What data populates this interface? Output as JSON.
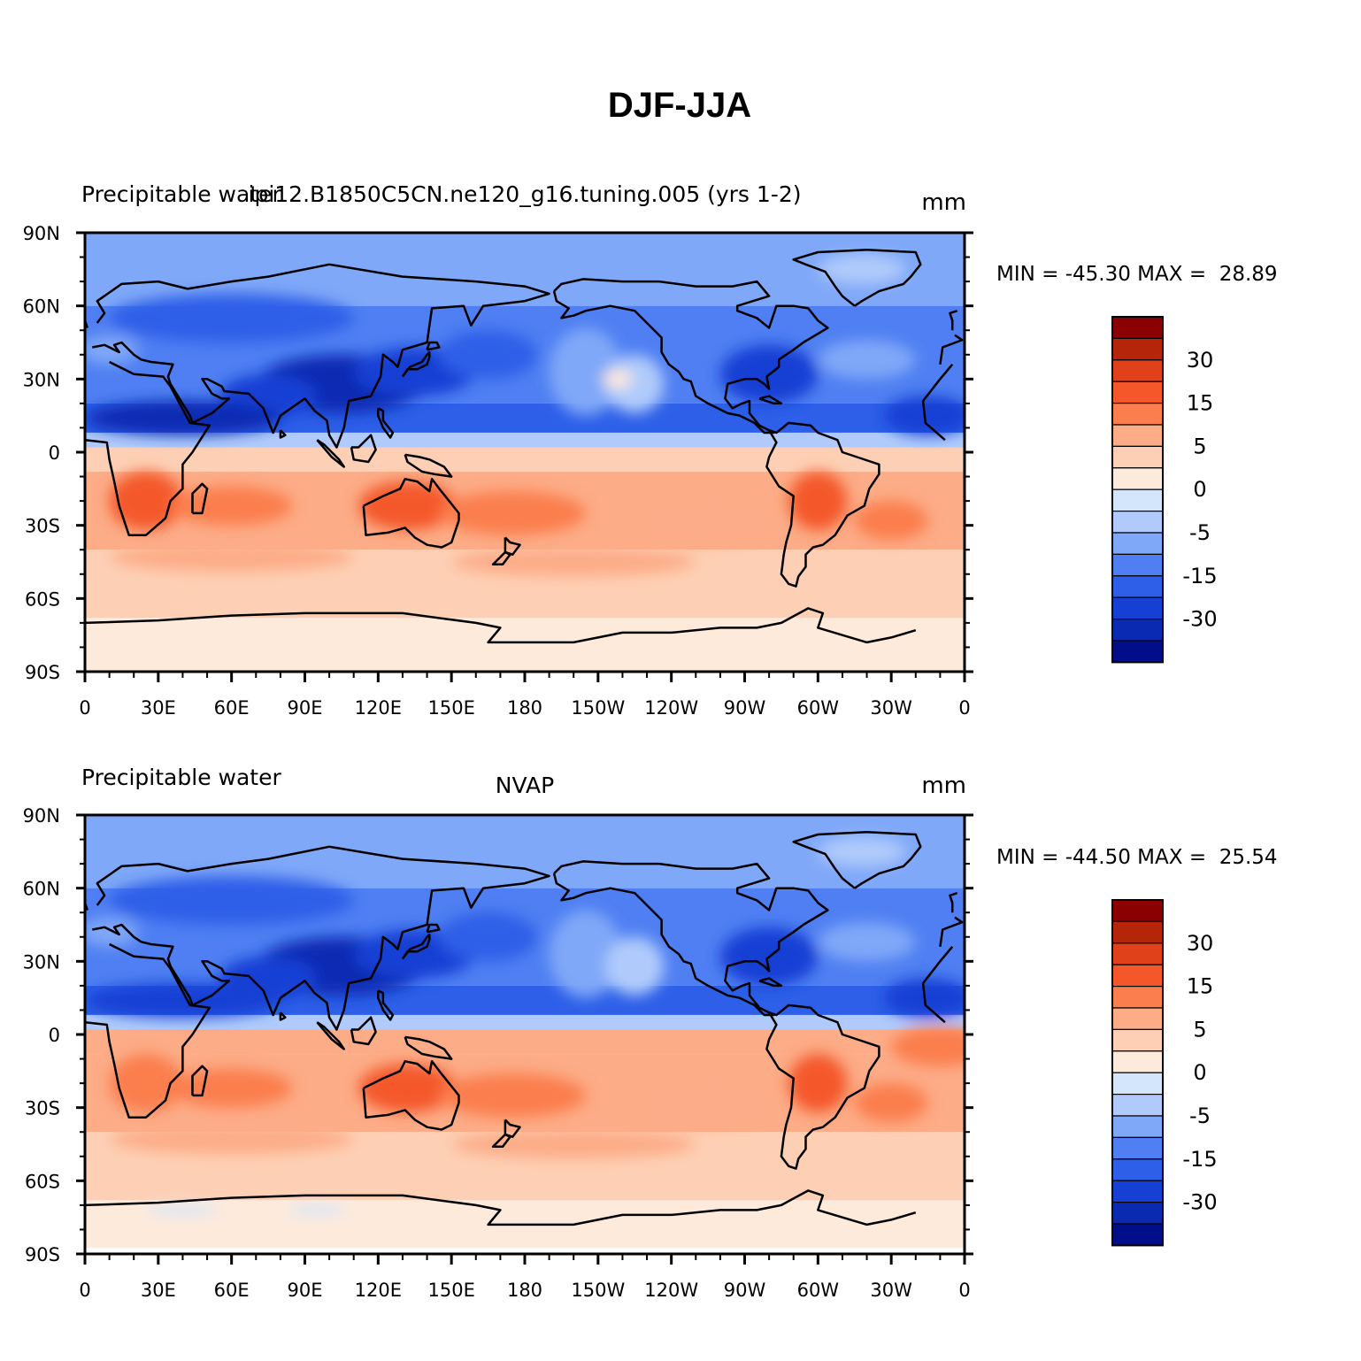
{
  "title": "DJF-JJA",
  "panels": [
    {
      "left_string": "Precipitable water",
      "center_string": "ipi12.B1850C5CN.ne120_g16.tuning.005 (yrs 1-2)",
      "right_string": "mm",
      "min_max": "MIN = -45.30 MAX =  28.89",
      "pattern": "model"
    },
    {
      "left_string": "Precipitable water",
      "center_string": "NVAP",
      "right_string": "mm",
      "min_max": "MIN = -44.50 MAX =  25.54",
      "pattern": "obs"
    }
  ],
  "lat_ticks": [
    "90N",
    "60N",
    "30N",
    "0",
    "30S",
    "60S",
    "90S"
  ],
  "lon_ticks": [
    "0",
    "30E",
    "60E",
    "90E",
    "120E",
    "150E",
    "180",
    "150W",
    "120W",
    "90W",
    "60W",
    "30W",
    "0"
  ],
  "colorbar": {
    "labels": [
      "30",
      "15",
      "5",
      "0",
      "-5",
      "-15",
      "-30"
    ],
    "colors": [
      "#8b0000",
      "#b5250a",
      "#e0401a",
      "#f4582a",
      "#fb7e4e",
      "#fcac87",
      "#fdd0b5",
      "#feeadb",
      "#d3e6fc",
      "#b0cbfb",
      "#80a8f8",
      "#4f7ff2",
      "#2d5fe8",
      "#1640d4",
      "#0a2ab2",
      "#000e8a"
    ]
  },
  "map_colors": {
    "cold_deep": "#0a2ab2",
    "cold_strong": "#1640d4",
    "cold_mid": "#2d5fe8",
    "cold": "#4f7ff2",
    "cool": "#80a8f8",
    "cool_light": "#b0cbfb",
    "neutral_neg": "#d3e6fc",
    "neutral_pos": "#feeadb",
    "warm_light": "#fdd0b5",
    "warm": "#fcac87",
    "warm_mid": "#fb7e4e",
    "warm_strong": "#f4582a"
  }
}
